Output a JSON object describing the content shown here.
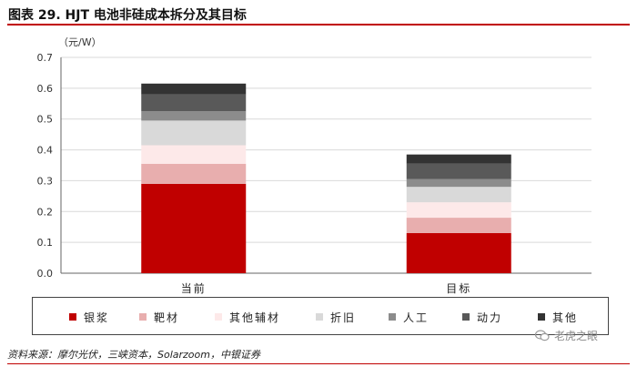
{
  "title": "图表 29. HJT 电池非硅成本拆分及其目标",
  "unit": "（元/W）",
  "source": "资料来源：摩尔光伏，三峡资本，Solarzoom，中银证券",
  "watermark": "老虎之眼",
  "chart_data": {
    "type": "stacked_bar",
    "categories": [
      "当前",
      "目标"
    ],
    "ylim": [
      0,
      0.7
    ],
    "yticks": [
      "0.0",
      "0.1",
      "0.2",
      "0.3",
      "0.4",
      "0.5",
      "0.6",
      "0.7"
    ],
    "grid": true,
    "legend_position": "bottom",
    "series": [
      {
        "name": "银浆",
        "color": "#c00000",
        "values": [
          0.29,
          0.13
        ]
      },
      {
        "name": "靶材",
        "color": "#e8aeae",
        "values": [
          0.065,
          0.05
        ]
      },
      {
        "name": "其他辅材",
        "color": "#fde9e9",
        "values": [
          0.06,
          0.05
        ]
      },
      {
        "name": "折旧",
        "color": "#d9d9d9",
        "values": [
          0.08,
          0.05
        ]
      },
      {
        "name": "人工",
        "color": "#8c8c8c",
        "values": [
          0.03,
          0.025
        ]
      },
      {
        "name": "动力",
        "color": "#595959",
        "values": [
          0.055,
          0.05
        ]
      },
      {
        "name": "其他",
        "color": "#333333",
        "values": [
          0.035,
          0.03
        ]
      }
    ]
  }
}
